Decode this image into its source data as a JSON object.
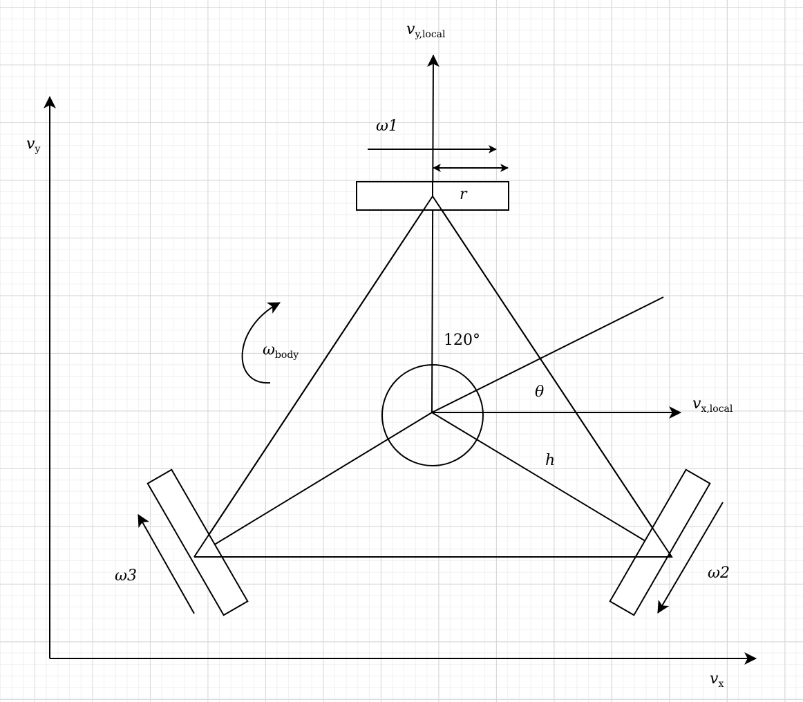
{
  "labels": {
    "vy": "v",
    "vy_sub": "y",
    "vx": "v",
    "vx_sub": "x",
    "vy_local": "v",
    "vy_local_sub": "y,local",
    "vx_local": "v",
    "vx_local_sub": "x,local",
    "omega1": "ω1",
    "omega2": "ω2",
    "omega3": "ω3",
    "omega_body": "ω",
    "omega_body_sub": "body",
    "r": "r",
    "h": "h",
    "theta": "θ",
    "angle": "120°"
  }
}
